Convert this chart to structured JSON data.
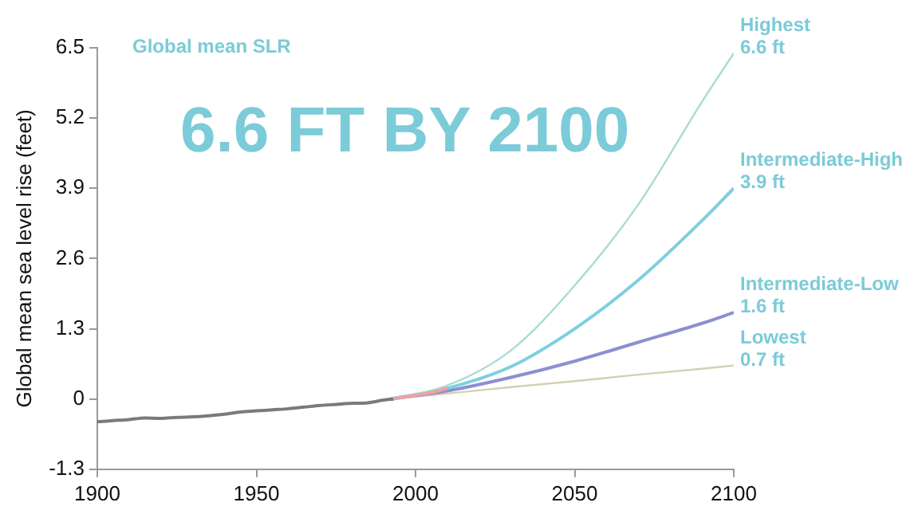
{
  "chart_data": {
    "type": "line",
    "title": "Global mean SLR",
    "subtitle": "6.6 FT BY 2100",
    "ylabel": "Global mean sea level rise (feet)",
    "xlim": [
      1900,
      2100
    ],
    "xticks": [
      1900,
      1950,
      2000,
      2050,
      2100
    ],
    "ylim": [
      -1.3,
      6.5
    ],
    "yticks": [
      -1.3,
      0,
      1.3,
      2.6,
      3.9,
      5.2,
      6.5
    ],
    "grid": false,
    "legend": false,
    "marker": "none",
    "line_style": "solid",
    "series": [
      {
        "color": "#7a7a7a",
        "x": [
          1900,
          1905,
          1910,
          1915,
          1920,
          1925,
          1930,
          1935,
          1940,
          1945,
          1950,
          1955,
          1960,
          1965,
          1970,
          1975,
          1980,
          1985,
          1990,
          1993
        ],
        "values": [
          -0.42,
          -0.4,
          -0.38,
          -0.35,
          -0.36,
          -0.34,
          -0.33,
          -0.31,
          -0.28,
          -0.24,
          -0.22,
          -0.2,
          -0.18,
          -0.15,
          -0.12,
          -0.1,
          -0.08,
          -0.07,
          -0.02,
          0.0
        ]
      },
      {
        "color": "#f0a0a0",
        "x": [
          1993,
          2000,
          2005,
          2010
        ],
        "values": [
          0.0,
          0.07,
          0.12,
          0.2
        ]
      },
      {
        "name": "Highest",
        "color": "#a8ddd0",
        "x": [
          1992,
          2010,
          2030,
          2050,
          2070,
          2090,
          2100
        ],
        "values": [
          0,
          0.25,
          0.9,
          2.1,
          3.6,
          5.5,
          6.4
        ]
      },
      {
        "name": "Intermediate-High",
        "color": "#7ecfe0",
        "x": [
          1992,
          2010,
          2030,
          2050,
          2070,
          2090,
          2100
        ],
        "values": [
          0,
          0.2,
          0.6,
          1.3,
          2.2,
          3.3,
          3.9
        ]
      },
      {
        "name": "Intermediate-Low",
        "color": "#8c8fd0",
        "x": [
          1992,
          2010,
          2030,
          2050,
          2070,
          2090,
          2100
        ],
        "values": [
          0,
          0.15,
          0.4,
          0.7,
          1.05,
          1.4,
          1.6
        ]
      },
      {
        "name": "Lowest",
        "color": "#d5d0b0",
        "x": [
          1992,
          2010,
          2030,
          2050,
          2070,
          2090,
          2100
        ],
        "values": [
          0,
          0.1,
          0.22,
          0.33,
          0.45,
          0.56,
          0.62
        ]
      }
    ],
    "annotations": [
      "6.6 ft",
      "3.9 ft",
      "1.6 ft",
      "0.7 ft"
    ]
  }
}
